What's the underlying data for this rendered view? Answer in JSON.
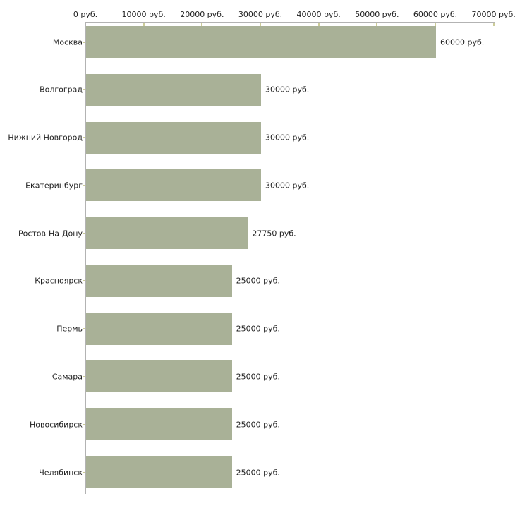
{
  "chart_data": {
    "type": "bar",
    "orientation": "horizontal",
    "title": "",
    "xlabel": "",
    "ylabel": "",
    "grid": false,
    "legend": false,
    "categories": [
      "Москва",
      "Волгоград",
      "Нижний Новгород",
      "Екатеринбург",
      "Ростов-На-Дону",
      "Красноярск",
      "Пермь",
      "Самара",
      "Новосибирск",
      "Челябинск"
    ],
    "values": [
      60000,
      30000,
      30000,
      30000,
      27750,
      25000,
      25000,
      25000,
      25000,
      25000
    ],
    "value_labels": [
      "60000 руб.",
      "30000 руб.",
      "30000 руб.",
      "30000 руб.",
      "27750 руб.",
      "25000 руб.",
      "25000 руб.",
      "25000 руб.",
      "25000 руб.",
      "25000 руб."
    ],
    "x_axis": {
      "position": "top",
      "min": 0,
      "max": 70000,
      "ticks": [
        0,
        10000,
        20000,
        30000,
        40000,
        50000,
        60000,
        70000
      ],
      "tick_labels": [
        "0 руб.",
        "10000 руб.",
        "20000 руб.",
        "30000 руб.",
        "40000 руб.",
        "50000 руб.",
        "60000 руб.",
        "70000 руб."
      ]
    },
    "colors": {
      "bar": "#a9b197",
      "axis_line": "#b3b3b3",
      "tick": "#cccc99",
      "text": "#1f1f1f",
      "background": "#ffffff"
    }
  }
}
